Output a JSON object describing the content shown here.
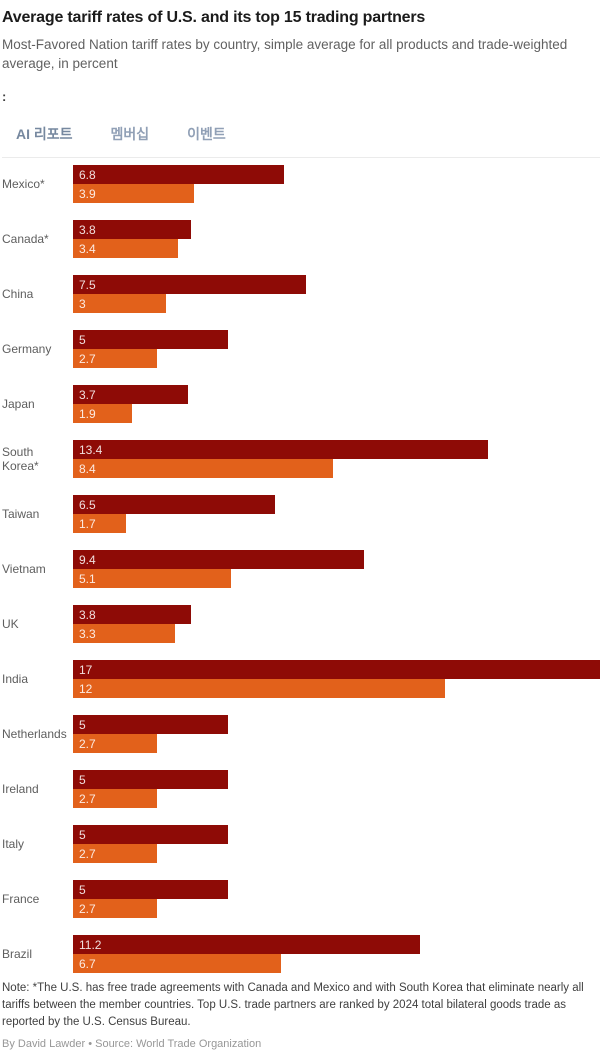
{
  "header": {
    "title": "Average tariff rates of U.S. and its top 15 trading partners",
    "subtitle": "Most-Favored Nation tariff rates by country, simple average for all products and trade-weighted average, in percent",
    "stray_colon": ":"
  },
  "tabs": [
    {
      "label": "AI 리포트",
      "active": true
    },
    {
      "label": "멤버십",
      "active": false
    },
    {
      "label": "이벤트",
      "active": false
    }
  ],
  "colors": {
    "simple_average_bar": "#8e0b06",
    "trade_weighted_bar": "#e2611b",
    "tab_text": "#91a0b6",
    "value_label": "rgba(255,255,255,0.87)"
  },
  "chart_data": {
    "type": "bar",
    "orientation": "horizontal",
    "title": "Average tariff rates of U.S. and its top 15 trading partners",
    "xlabel": "",
    "ylabel": "",
    "xlim": [
      0,
      17
    ],
    "grid": false,
    "legend": "none",
    "value_labels": "inside-left",
    "categories": [
      "Mexico*",
      "Canada*",
      "China",
      "Germany",
      "Japan",
      "South Korea*",
      "Taiwan",
      "Vietnam",
      "UK",
      "India",
      "Netherlands",
      "Ireland",
      "Italy",
      "France",
      "Brazil"
    ],
    "series": [
      {
        "name": "Simple average for all products",
        "color": "#8e0b06",
        "values": [
          6.8,
          3.8,
          7.5,
          5,
          3.7,
          13.4,
          6.5,
          9.4,
          3.8,
          17,
          5,
          5,
          5,
          5,
          11.2
        ]
      },
      {
        "name": "Trade-weighted average",
        "color": "#e2611b",
        "values": [
          3.9,
          3.4,
          3,
          2.7,
          1.9,
          8.4,
          1.7,
          5.1,
          3.3,
          12,
          2.7,
          2.7,
          2.7,
          2.7,
          6.7
        ]
      }
    ]
  },
  "footer": {
    "note": "Note: *The U.S. has free trade agreements with Canada and Mexico and with South Korea that eliminate nearly all tariffs between the member countries. Top U.S. trade partners are ranked by 2024 total bilateral goods trade as reported by the U.S. Census Bureau.",
    "byline": "By David Lawder • Source: World Trade Organization"
  }
}
